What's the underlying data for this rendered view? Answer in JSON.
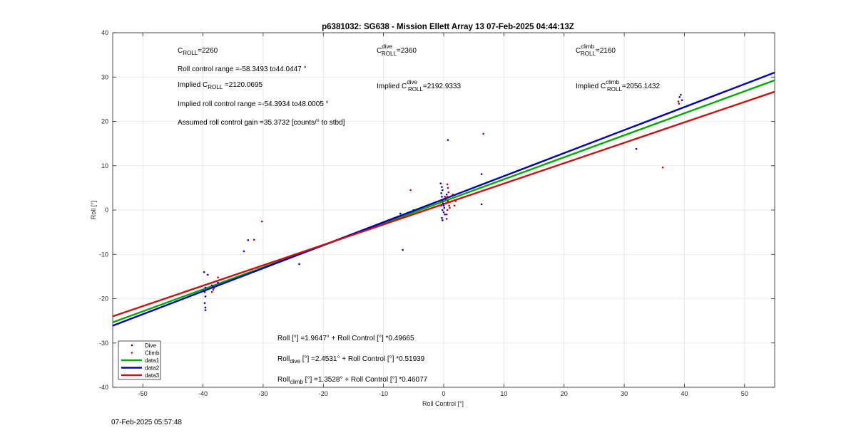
{
  "chart_data": {
    "type": "scatter",
    "title": "p6381032: SG638 - Mission Ellett Array 13 07-Feb-2025 04:44:13Z",
    "xlabel": "Roll Control [°]",
    "ylabel": "Roll [°]",
    "xlim": [
      -55,
      55
    ],
    "ylim": [
      -40,
      40
    ],
    "xticks": [
      -50,
      -40,
      -30,
      -20,
      -10,
      0,
      10,
      20,
      30,
      40,
      50
    ],
    "yticks": [
      -40,
      -30,
      -20,
      -10,
      0,
      10,
      20,
      30,
      40
    ],
    "grid": true,
    "legend_position": "bottom-left",
    "series": [
      {
        "name": "Dive",
        "kind": "scatter",
        "color": "#0000cc",
        "points": [
          [
            -39.8,
            -14
          ],
          [
            -39.2,
            -14.6
          ],
          [
            -39.6,
            -17.5
          ],
          [
            -39.7,
            -18.5
          ],
          [
            -39.6,
            -19.5
          ],
          [
            -39.7,
            -21
          ],
          [
            -39.6,
            -22
          ],
          [
            -39.6,
            -22.6
          ],
          [
            -38.5,
            -17
          ],
          [
            -38.2,
            -17.6
          ],
          [
            -37.5,
            -16.4
          ],
          [
            -37.8,
            -17.2
          ],
          [
            -33.2,
            -9.3
          ],
          [
            -32.5,
            -6.8
          ],
          [
            -24,
            -12.2
          ],
          [
            -7.2,
            -0.8
          ],
          [
            -6.8,
            -9
          ],
          [
            -5,
            0
          ],
          [
            -0.5,
            6
          ],
          [
            -0.3,
            5.2
          ],
          [
            -0.2,
            4.5
          ],
          [
            -0.4,
            3.8
          ],
          [
            -0.3,
            3
          ],
          [
            -0.2,
            2.2
          ],
          [
            -0.1,
            1.5
          ],
          [
            0,
            1
          ],
          [
            0.1,
            0.5
          ],
          [
            -0.2,
            0
          ],
          [
            0,
            -0.5
          ],
          [
            0.2,
            -1
          ],
          [
            -0.3,
            -1.8
          ],
          [
            -0.2,
            -2.3
          ],
          [
            0.5,
            3.5
          ],
          [
            0.3,
            2.5
          ],
          [
            0.7,
            15.8
          ],
          [
            6.3,
            8.1
          ],
          [
            6.3,
            1.3
          ],
          [
            32,
            13.8
          ],
          [
            39.4,
            26
          ],
          [
            39.6,
            24.8
          ],
          [
            39.2,
            25.5
          ]
        ]
      },
      {
        "name": "Climb",
        "kind": "scatter",
        "color": "#cc0000",
        "points": [
          [
            -38.5,
            -18.5
          ],
          [
            -38.3,
            -18
          ],
          [
            -37.5,
            -15.2
          ],
          [
            -31.5,
            -6.7
          ],
          [
            -30.2,
            -2.6
          ],
          [
            -5.5,
            4.5
          ],
          [
            -0.6,
            2
          ],
          [
            -0.4,
            1
          ],
          [
            0.2,
            3
          ],
          [
            0.6,
            5.8
          ],
          [
            0.7,
            5
          ],
          [
            0.8,
            4
          ],
          [
            0.6,
            3
          ],
          [
            0.7,
            2
          ],
          [
            0.9,
            1
          ],
          [
            0.6,
            0
          ],
          [
            0.5,
            -1
          ],
          [
            0.5,
            -2
          ],
          [
            1.5,
            3.5
          ],
          [
            2,
            2
          ],
          [
            1.8,
            1
          ],
          [
            1,
            0.5
          ],
          [
            6.6,
            17.2
          ],
          [
            36.4,
            9.6
          ],
          [
            39,
            24.5
          ],
          [
            39.1,
            24
          ]
        ]
      },
      {
        "name": "data1",
        "kind": "line",
        "color": "#00aa00",
        "intercept": 1.9647,
        "slope": 0.49665
      },
      {
        "name": "data2",
        "kind": "line",
        "color": "#0000bb",
        "intercept": 2.4531,
        "slope": 0.51939
      },
      {
        "name": "data3",
        "kind": "line",
        "color": "#cc1111",
        "intercept": 1.3528,
        "slope": 0.46077
      }
    ],
    "annotations": {
      "c_roll": {
        "base": "C",
        "sub": "ROLL",
        "rest": "=2260"
      },
      "c_roll_dive": {
        "base": "C",
        "sup": "dive",
        "sub": "ROLL",
        "rest": "=2360"
      },
      "c_roll_climb": {
        "base": "C",
        "sup": "climb",
        "sub": "ROLL",
        "rest": "=2160"
      },
      "roll_range": "Roll control range =-58.3493 to44.0447 °",
      "implied_c_roll": {
        "pre": "Implied C",
        "sub": "ROLL",
        "rest": " =2120.0695"
      },
      "implied_c_roll_dive": {
        "pre": "Implied C",
        "sup": "dive",
        "sub": "ROLL",
        "rest": "=2192.9333"
      },
      "implied_c_roll_climb": {
        "pre": "Implied C",
        "sup": "climb",
        "sub": "ROLL",
        "rest": "=2056.1432"
      },
      "implied_range": "Implied roll control range =-54.3934 to48.0005 °",
      "gain": "Assumed roll control gain =35.3732 [counts/° to stbd]",
      "fit_all": {
        "pre": "Roll [°] =1.9647° + Roll Control [°] *0.49665"
      },
      "fit_dive": {
        "pre": "Roll",
        "sub": "dive",
        "rest": " [°] =2.4531° + Roll Control [°] *0.51939"
      },
      "fit_climb": {
        "pre": "Roll",
        "sub": "climb",
        "rest": " [°] =1.3528° + Roll Control [°] *0.46077"
      }
    }
  },
  "footer_timestamp": "07-Feb-2025 05:57:48"
}
